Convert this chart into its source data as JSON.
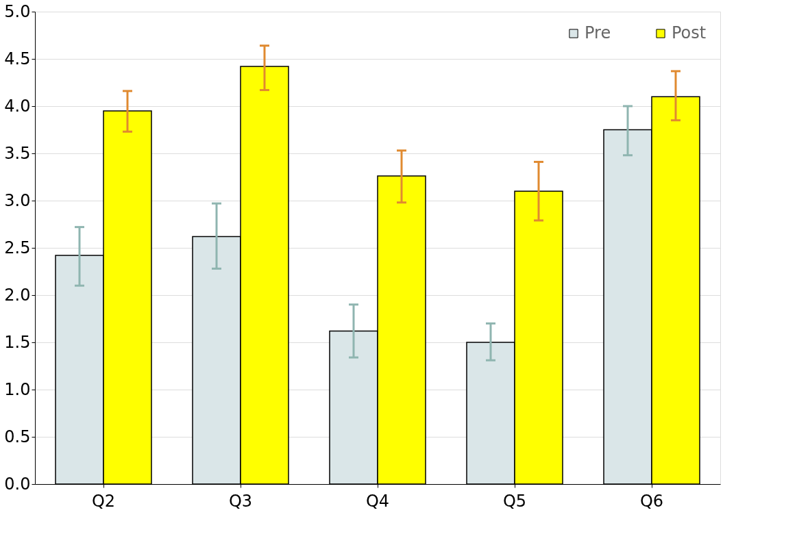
{
  "chart_data": {
    "type": "bar",
    "categories": [
      "Q2",
      "Q3",
      "Q4",
      "Q5",
      "Q6"
    ],
    "series": [
      {
        "name": "Pre",
        "color": "#dae6e8",
        "values": [
          2.42,
          2.62,
          1.62,
          1.5,
          3.75
        ],
        "errors": [
          [
            2.1,
            2.72
          ],
          [
            2.28,
            2.97
          ],
          [
            1.34,
            1.9
          ],
          [
            1.31,
            1.7
          ],
          [
            3.48,
            4.0
          ]
        ]
      },
      {
        "name": "Post",
        "color": "#ffff00",
        "values": [
          3.95,
          4.42,
          3.26,
          3.1,
          4.1
        ],
        "errors": [
          [
            3.73,
            4.16
          ],
          [
            4.17,
            4.64
          ],
          [
            2.98,
            3.53
          ],
          [
            2.79,
            3.41
          ],
          [
            3.85,
            4.37
          ]
        ]
      }
    ],
    "ylim": [
      0,
      5
    ],
    "yticks": [
      {
        "value": 0,
        "label": "0.0"
      },
      0.5,
      {
        "value": 1,
        "label": "1.0"
      },
      1.5,
      {
        "value": 2,
        "label": "2.0"
      },
      2.5,
      {
        "value": 3,
        "label": "3.0"
      },
      3.5,
      {
        "value": 4,
        "label": "4.0"
      },
      4.5,
      {
        "value": 5,
        "label": "5.0"
      }
    ],
    "grid": "y",
    "legend": "top right"
  }
}
